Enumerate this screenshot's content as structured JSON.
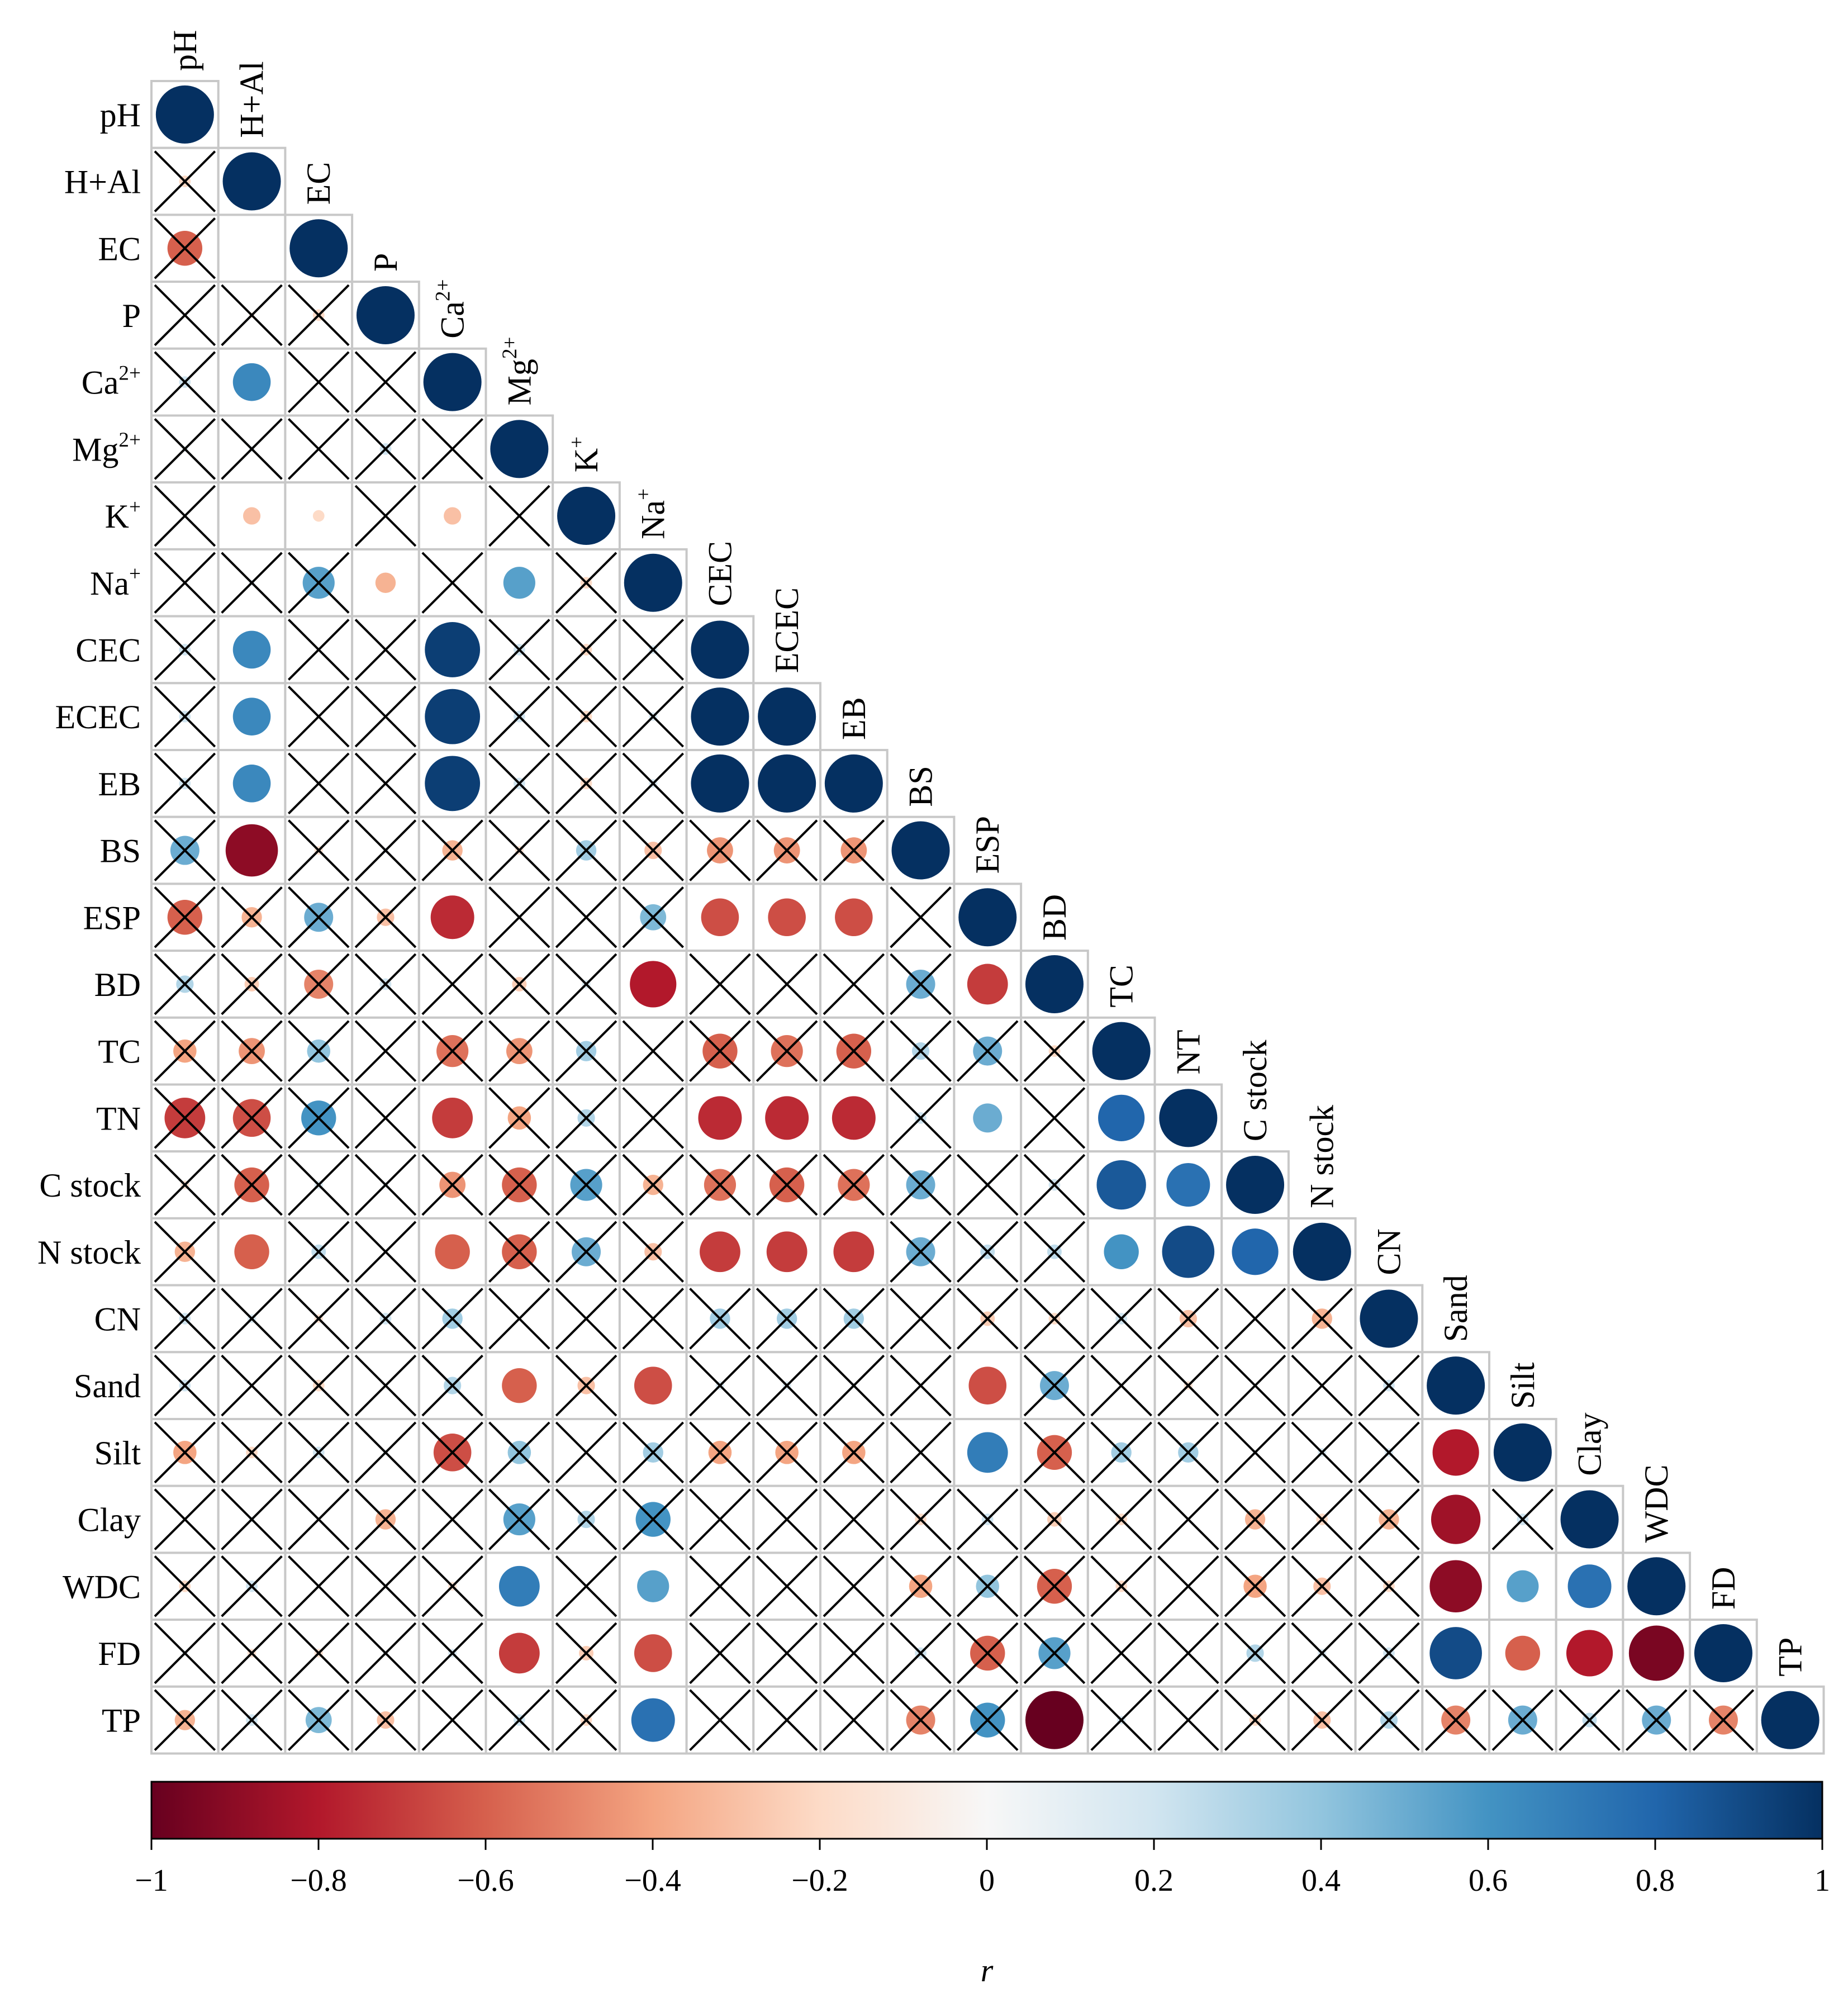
{
  "chart_data": {
    "type": "heatmap",
    "style": "lower-triangle correlation matrix with circles; crossed cells are not significant",
    "variables": [
      {
        "id": "pH",
        "label": "pH",
        "sup": ""
      },
      {
        "id": "H+Al",
        "label": "H+Al",
        "sup": ""
      },
      {
        "id": "EC",
        "label": "EC",
        "sup": ""
      },
      {
        "id": "P",
        "label": "P",
        "sup": ""
      },
      {
        "id": "Ca2+",
        "label": "Ca",
        "sup": "2+"
      },
      {
        "id": "Mg2+",
        "label": "Mg",
        "sup": "2+"
      },
      {
        "id": "K+",
        "label": "K",
        "sup": "+"
      },
      {
        "id": "Na+",
        "label": "Na",
        "sup": "+"
      },
      {
        "id": "CEC",
        "label": "CEC",
        "sup": ""
      },
      {
        "id": "ECEC",
        "label": "ECEC",
        "sup": ""
      },
      {
        "id": "EB",
        "label": "EB",
        "sup": ""
      },
      {
        "id": "BS",
        "label": "BS",
        "sup": ""
      },
      {
        "id": "ESP",
        "label": "ESP",
        "sup": ""
      },
      {
        "id": "BD",
        "label": "BD",
        "sup": ""
      },
      {
        "id": "TC",
        "label": "TC",
        "sup": ""
      },
      {
        "id": "TN",
        "label": "TN",
        "sup": ""
      },
      {
        "id": "C stock",
        "label": "C stock",
        "sup": ""
      },
      {
        "id": "N stock",
        "label": "N stock",
        "sup": ""
      },
      {
        "id": "CN",
        "label": "CN",
        "sup": ""
      },
      {
        "id": "Sand",
        "label": "Sand",
        "sup": ""
      },
      {
        "id": "Silt",
        "label": "Silt",
        "sup": ""
      },
      {
        "id": "Clay",
        "label": "Clay",
        "sup": ""
      },
      {
        "id": "WDC",
        "label": "WDC",
        "sup": ""
      },
      {
        "id": "FD",
        "label": "FD",
        "sup": ""
      },
      {
        "id": "TP",
        "label": "TP",
        "sup": ""
      }
    ],
    "top_labels": [
      "pH",
      "H+Al",
      "EC",
      "P",
      "Ca2+",
      "Mg2+",
      "K+",
      "Na+",
      "CEC",
      "ECEC",
      "EB",
      "BS",
      "ESP",
      "BD",
      "TC",
      "NT",
      "C stock",
      "N stock",
      "CN",
      "Sand",
      "Silt",
      "Clay",
      "WDC",
      "FD",
      "TP"
    ],
    "r_matrix_lower": [
      [
        1
      ],
      [
        -0.2,
        1
      ],
      [
        -0.6,
        0.0,
        1
      ],
      [
        0.0,
        -0.1,
        -0.2,
        1
      ],
      [
        0.2,
        0.65,
        0.0,
        0.0,
        1
      ],
      [
        0.1,
        0.1,
        0.0,
        0.2,
        0.0,
        1
      ],
      [
        0.0,
        -0.3,
        -0.2,
        0.0,
        -0.3,
        0.0,
        1
      ],
      [
        0.0,
        0.1,
        0.55,
        -0.35,
        0.0,
        0.55,
        -0.2,
        1
      ],
      [
        0.2,
        0.65,
        0.0,
        0.0,
        0.95,
        0.2,
        -0.2,
        0.15,
        1
      ],
      [
        0.2,
        0.65,
        0.0,
        0.0,
        0.95,
        0.2,
        -0.2,
        0.15,
        1.0,
        1
      ],
      [
        0.2,
        0.65,
        0.0,
        0.0,
        0.95,
        0.2,
        -0.2,
        0.15,
        1.0,
        1.0,
        1
      ],
      [
        0.5,
        -0.9,
        -0.15,
        0.1,
        -0.35,
        -0.15,
        0.35,
        -0.3,
        -0.45,
        -0.45,
        -0.45,
        1
      ],
      [
        -0.6,
        -0.35,
        0.5,
        -0.3,
        -0.75,
        0.0,
        0.0,
        0.45,
        -0.65,
        -0.65,
        -0.65,
        0.0,
        1
      ],
      [
        0.3,
        -0.25,
        -0.5,
        0.2,
        0.0,
        -0.25,
        0.15,
        -0.8,
        0.0,
        0.0,
        0.0,
        0.5,
        -0.7,
        1
      ],
      [
        -0.4,
        -0.45,
        0.4,
        0.0,
        -0.55,
        -0.45,
        0.35,
        0.0,
        -0.6,
        -0.55,
        -0.6,
        0.3,
        0.5,
        -0.2,
        1
      ],
      [
        -0.7,
        -0.65,
        0.6,
        0.0,
        -0.7,
        -0.4,
        0.3,
        0.0,
        -0.75,
        -0.75,
        -0.75,
        0.2,
        0.5,
        0.0,
        0.8,
        1
      ],
      [
        -0.15,
        -0.6,
        0.15,
        0.1,
        -0.45,
        -0.6,
        0.55,
        -0.35,
        -0.55,
        -0.6,
        -0.55,
        0.5,
        0.1,
        0.2,
        0.85,
        0.75,
        1
      ],
      [
        -0.35,
        -0.6,
        0.25,
        0.0,
        -0.6,
        -0.6,
        0.5,
        -0.3,
        -0.7,
        -0.7,
        -0.7,
        0.5,
        0.25,
        0.25,
        0.6,
        0.9,
        0.8,
        1
      ],
      [
        0.2,
        0.15,
        -0.15,
        0.2,
        0.35,
        0.0,
        0.0,
        0.0,
        0.35,
        0.35,
        0.35,
        0.0,
        -0.25,
        -0.2,
        0.2,
        -0.3,
        0.0,
        -0.35,
        1
      ],
      [
        0.2,
        0.0,
        -0.2,
        0.0,
        0.3,
        -0.6,
        -0.3,
        -0.65,
        0.15,
        0.15,
        0.1,
        0.0,
        -0.65,
        0.5,
        0.0,
        -0.15,
        0.0,
        0.0,
        0.2,
        1
      ],
      [
        -0.4,
        -0.2,
        0.2,
        0.1,
        -0.65,
        0.4,
        0.0,
        0.35,
        -0.4,
        -0.4,
        -0.4,
        0.0,
        0.7,
        -0.6,
        0.35,
        0.35,
        0.1,
        0.15,
        0.15,
        -0.8,
        1
      ],
      [
        0.0,
        0.1,
        0.0,
        -0.35,
        0.0,
        0.55,
        0.3,
        0.6,
        0.0,
        0.0,
        0.0,
        -0.2,
        0.2,
        -0.25,
        -0.2,
        0.0,
        -0.35,
        -0.2,
        -0.35,
        -0.85,
        0.2,
        1
      ],
      [
        -0.2,
        0.2,
        0.0,
        0.0,
        -0.15,
        0.7,
        0.0,
        0.55,
        0.0,
        0.0,
        0.0,
        -0.4,
        0.4,
        -0.6,
        -0.2,
        0.0,
        -0.4,
        -0.3,
        -0.2,
        -0.9,
        0.55,
        0.75,
        1
      ],
      [
        0.1,
        -0.15,
        -0.15,
        0.1,
        0.15,
        -0.7,
        -0.25,
        -0.65,
        0.0,
        0.0,
        0.0,
        0.2,
        -0.6,
        0.55,
        0.0,
        0.0,
        0.3,
        0.15,
        0.2,
        0.9,
        -0.6,
        -0.8,
        -0.95,
        1
      ],
      [
        -0.35,
        0.2,
        0.45,
        -0.3,
        0.0,
        0.2,
        -0.2,
        0.75,
        0.0,
        0.0,
        0.0,
        -0.5,
        0.6,
        -1.0,
        0.15,
        0.0,
        -0.2,
        -0.3,
        0.3,
        -0.5,
        0.5,
        0.25,
        0.5,
        -0.5,
        1
      ]
    ],
    "not_significant": [
      "1,0",
      "2,0",
      "3,0",
      "3,1",
      "3,2",
      "4,0",
      "4,2",
      "4,3",
      "5,0",
      "5,1",
      "5,2",
      "5,3",
      "5,4",
      "6,0",
      "6,3",
      "6,5",
      "7,0",
      "7,1",
      "7,2",
      "7,4",
      "7,6",
      "8,0",
      "8,2",
      "8,3",
      "8,5",
      "8,6",
      "8,7",
      "9,0",
      "9,2",
      "9,3",
      "9,5",
      "9,6",
      "9,7",
      "10,0",
      "10,2",
      "10,3",
      "10,5",
      "10,6",
      "10,7",
      "11,0",
      "11,2",
      "11,3",
      "11,4",
      "11,5",
      "11,6",
      "11,7",
      "11,8",
      "11,9",
      "11,10",
      "12,0",
      "12,1",
      "12,2",
      "12,3",
      "12,5",
      "12,6",
      "12,7",
      "12,11",
      "13,0",
      "13,1",
      "13,2",
      "13,3",
      "13,4",
      "13,5",
      "13,6",
      "13,8",
      "13,9",
      "13,10",
      "13,11",
      "14,0",
      "14,1",
      "14,2",
      "14,3",
      "14,4",
      "14,5",
      "14,6",
      "14,7",
      "14,8",
      "14,9",
      "14,10",
      "14,11",
      "14,12",
      "14,13",
      "15,0",
      "15,1",
      "15,2",
      "15,3",
      "15,5",
      "15,6",
      "15,7",
      "15,11",
      "15,13",
      "16,0",
      "16,1",
      "16,2",
      "16,3",
      "16,4",
      "16,5",
      "16,6",
      "16,7",
      "16,8",
      "16,9",
      "16,10",
      "16,11",
      "16,12",
      "16,13",
      "17,0",
      "17,2",
      "17,3",
      "17,5",
      "17,6",
      "17,7",
      "17,11",
      "17,12",
      "17,13",
      "18,0",
      "18,1",
      "18,2",
      "18,3",
      "18,4",
      "18,5",
      "18,6",
      "18,7",
      "18,8",
      "18,9",
      "18,10",
      "18,11",
      "18,12",
      "18,13",
      "18,14",
      "18,15",
      "18,16",
      "18,17",
      "19,0",
      "19,1",
      "19,2",
      "19,3",
      "19,4",
      "19,6",
      "19,8",
      "19,9",
      "19,10",
      "19,11",
      "19,13",
      "19,14",
      "19,15",
      "19,16",
      "19,17",
      "19,18",
      "20,0",
      "20,1",
      "20,2",
      "20,3",
      "20,4",
      "20,5",
      "20,6",
      "20,7",
      "20,8",
      "20,9",
      "20,10",
      "20,11",
      "20,13",
      "20,14",
      "20,15",
      "20,16",
      "20,17",
      "20,18",
      "21,0",
      "21,1",
      "21,2",
      "21,3",
      "21,4",
      "21,5",
      "21,6",
      "21,7",
      "21,8",
      "21,9",
      "21,10",
      "21,11",
      "21,12",
      "21,13",
      "21,14",
      "21,15",
      "21,16",
      "21,17",
      "21,18",
      "21,20",
      "22,0",
      "22,1",
      "22,2",
      "22,3",
      "22,4",
      "22,6",
      "22,8",
      "22,9",
      "22,10",
      "22,11",
      "22,12",
      "22,13",
      "22,14",
      "22,15",
      "22,16",
      "22,17",
      "22,18",
      "23,0",
      "23,1",
      "23,2",
      "23,3",
      "23,4",
      "23,6",
      "23,8",
      "23,9",
      "23,10",
      "23,11",
      "23,12",
      "23,13",
      "23,14",
      "23,15",
      "23,16",
      "23,17",
      "23,18",
      "24,0",
      "24,1",
      "24,2",
      "24,3",
      "24,4",
      "24,5",
      "24,6",
      "24,8",
      "24,9",
      "24,10",
      "24,11",
      "24,12",
      "24,14",
      "24,15",
      "24,16",
      "24,17",
      "24,18",
      "24,19",
      "24,20",
      "24,21",
      "24,22",
      "24,23"
    ],
    "colorbar": {
      "label": "r",
      "range": [
        -1,
        1
      ],
      "ticks": [
        -1,
        -0.8,
        -0.6,
        -0.4,
        -0.2,
        0,
        0.2,
        0.4,
        0.6,
        0.8,
        1
      ],
      "tick_labels": [
        "−1",
        "−0.8",
        "−0.6",
        "−0.4",
        "−0.2",
        "0",
        "0.2",
        "0.4",
        "0.6",
        "0.8",
        "1"
      ],
      "palette": [
        "#67001f",
        "#b2182b",
        "#d6604d",
        "#f4a582",
        "#fddbc7",
        "#f7f7f7",
        "#d1e5f0",
        "#92c5de",
        "#4393c3",
        "#2166ac",
        "#053061"
      ]
    },
    "legend_placement": "bottom",
    "grid": true
  }
}
